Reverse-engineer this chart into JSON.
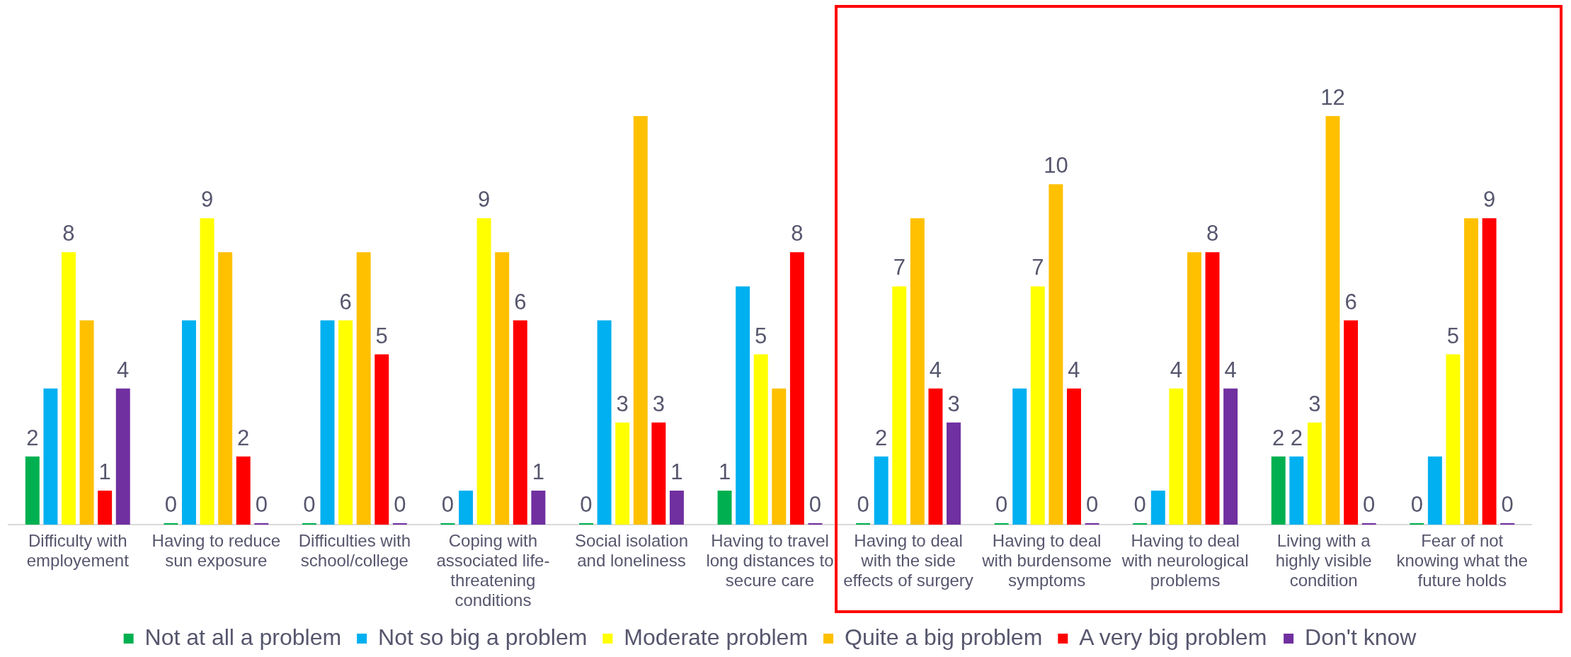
{
  "chart_data": {
    "type": "bar",
    "categories": [
      "Difficulty with employement",
      "Having to reduce sun exposure",
      "Difficulties with school/college",
      "Coping with associated life-threatening conditions",
      "Social isolation and loneliness",
      "Having to travel long distances to secure care",
      "Having to deal with the side effects of surgery",
      "Having to deal with burdensome symptoms",
      "Having to deal with neurological problems",
      "Living with a highly visible condition",
      "Fear of not knowing what the future holds"
    ],
    "series": [
      {
        "name": "Not at all a problem",
        "color": "#00b050",
        "values": [
          2,
          0,
          0,
          0,
          0,
          1,
          0,
          0,
          0,
          2,
          0
        ],
        "value_labels": [
          "2",
          "0",
          "0",
          "0",
          "0",
          "1",
          "0",
          "0",
          "0",
          "2",
          "0"
        ]
      },
      {
        "name": "Not so big a problem",
        "color": "#00b0f0",
        "values": [
          4,
          6,
          6,
          1,
          6,
          7,
          2,
          4,
          1,
          2,
          2
        ],
        "value_labels": [
          null,
          null,
          null,
          null,
          null,
          null,
          "2",
          null,
          null,
          "2",
          null
        ]
      },
      {
        "name": "Moderate problem",
        "color": "#ffff00",
        "values": [
          8,
          9,
          6,
          9,
          3,
          5,
          7,
          7,
          4,
          3,
          5
        ],
        "value_labels": [
          "8",
          "9",
          "6",
          "9",
          "3",
          "5",
          "7",
          "7",
          "4",
          "3",
          "5"
        ]
      },
      {
        "name": "Quite a big problem",
        "color": "#ffc000",
        "values": [
          6,
          8,
          8,
          8,
          12,
          4,
          9,
          10,
          8,
          12,
          9
        ],
        "value_labels": [
          null,
          null,
          null,
          null,
          null,
          null,
          null,
          "10",
          null,
          "12",
          null
        ]
      },
      {
        "name": "A very big problem",
        "color": "#ff0000",
        "values": [
          1,
          2,
          5,
          6,
          3,
          8,
          4,
          4,
          8,
          6,
          9
        ],
        "value_labels": [
          "1",
          "2",
          "5",
          "6",
          "3",
          "8",
          "4",
          "4",
          "8",
          "6",
          "9"
        ]
      },
      {
        "name": "Don't know",
        "color": "#7030a0",
        "values": [
          4,
          0,
          0,
          1,
          1,
          0,
          3,
          0,
          4,
          0,
          0
        ],
        "value_labels": [
          "4",
          "0",
          "0",
          "1",
          "1",
          "0",
          "3",
          "0",
          "4",
          "0",
          "0"
        ]
      }
    ],
    "legend": "bottom",
    "grid": false,
    "tick_labels": "x"
  }
}
